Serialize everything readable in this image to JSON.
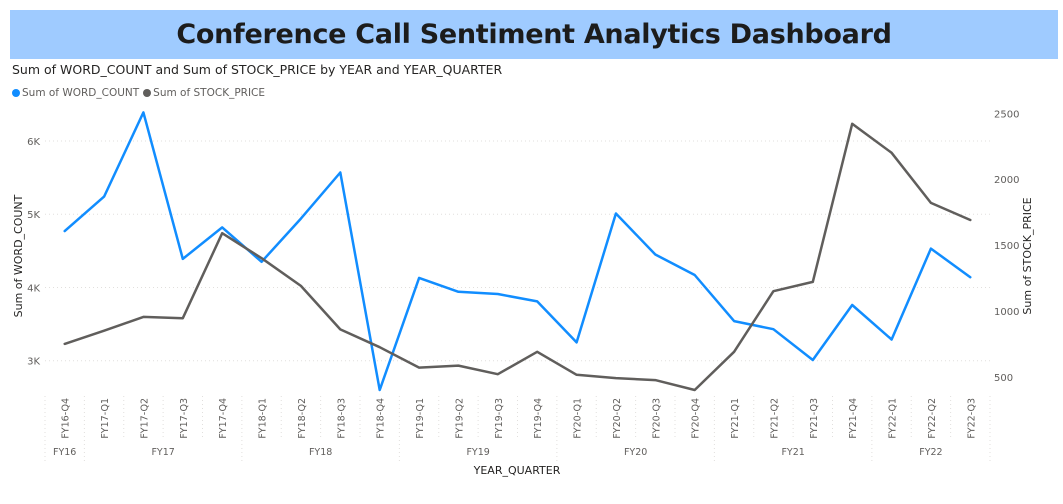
{
  "dashboard": {
    "title": "Conference Call Sentiment Analytics Dashboard",
    "banner_color": "#9fcbff"
  },
  "chart_data": {
    "type": "line",
    "title": "Sum of WORD_COUNT and Sum of STOCK_PRICE by YEAR and YEAR_QUARTER",
    "xlabel": "YEAR_QUARTER",
    "ylabel": "Sum of WORD_COUNT",
    "y2label": "Sum of STOCK_PRICE",
    "categories": [
      "FY16-Q4",
      "FY17-Q1",
      "FY17-Q2",
      "FY17-Q3",
      "FY17-Q4",
      "FY18-Q1",
      "FY18-Q2",
      "FY18-Q3",
      "FY18-Q4",
      "FY19-Q1",
      "FY19-Q2",
      "FY19-Q3",
      "FY19-Q4",
      "FY20-Q1",
      "FY20-Q2",
      "FY20-Q3",
      "FY20-Q4",
      "FY21-Q1",
      "FY21-Q2",
      "FY21-Q3",
      "FY21-Q4",
      "FY22-Q1",
      "FY22-Q2",
      "FY22-Q3"
    ],
    "year_groups": [
      {
        "label": "FY16",
        "count": 1
      },
      {
        "label": "FY17",
        "count": 4
      },
      {
        "label": "FY18",
        "count": 4
      },
      {
        "label": "FY19",
        "count": 4
      },
      {
        "label": "FY20",
        "count": 4
      },
      {
        "label": "FY21",
        "count": 4
      },
      {
        "label": "FY22",
        "count": 3
      }
    ],
    "y_ticks": [
      3000,
      4000,
      5000,
      6000
    ],
    "y_tick_labels": [
      "3K",
      "4K",
      "5K",
      "6K"
    ],
    "y_range": [
      2600,
      6450
    ],
    "y2_ticks": [
      500,
      1000,
      1500,
      2000,
      2500
    ],
    "y2_tick_labels": [
      "500",
      "1000",
      "1500",
      "2000",
      "2500"
    ],
    "y2_range": [
      400,
      2540
    ],
    "grid": true,
    "legend_position": "top-left",
    "series": [
      {
        "name": "Sum of WORD_COUNT",
        "axis": "left",
        "color": "#118dff",
        "values": [
          4770,
          5240,
          6390,
          4390,
          4820,
          4350,
          4940,
          5570,
          2600,
          4130,
          3940,
          3910,
          3810,
          3250,
          5010,
          4450,
          4170,
          3540,
          3430,
          3010,
          3760,
          3290,
          4530,
          4140
        ]
      },
      {
        "name": "Sum of STOCK_PRICE",
        "axis": "right",
        "color": "#605e5c",
        "values": [
          750,
          850,
          955,
          945,
          1590,
          1400,
          1190,
          860,
          725,
          570,
          585,
          520,
          690,
          515,
          490,
          475,
          400,
          690,
          1150,
          1220,
          2420,
          2200,
          1820,
          1690
        ]
      }
    ]
  }
}
